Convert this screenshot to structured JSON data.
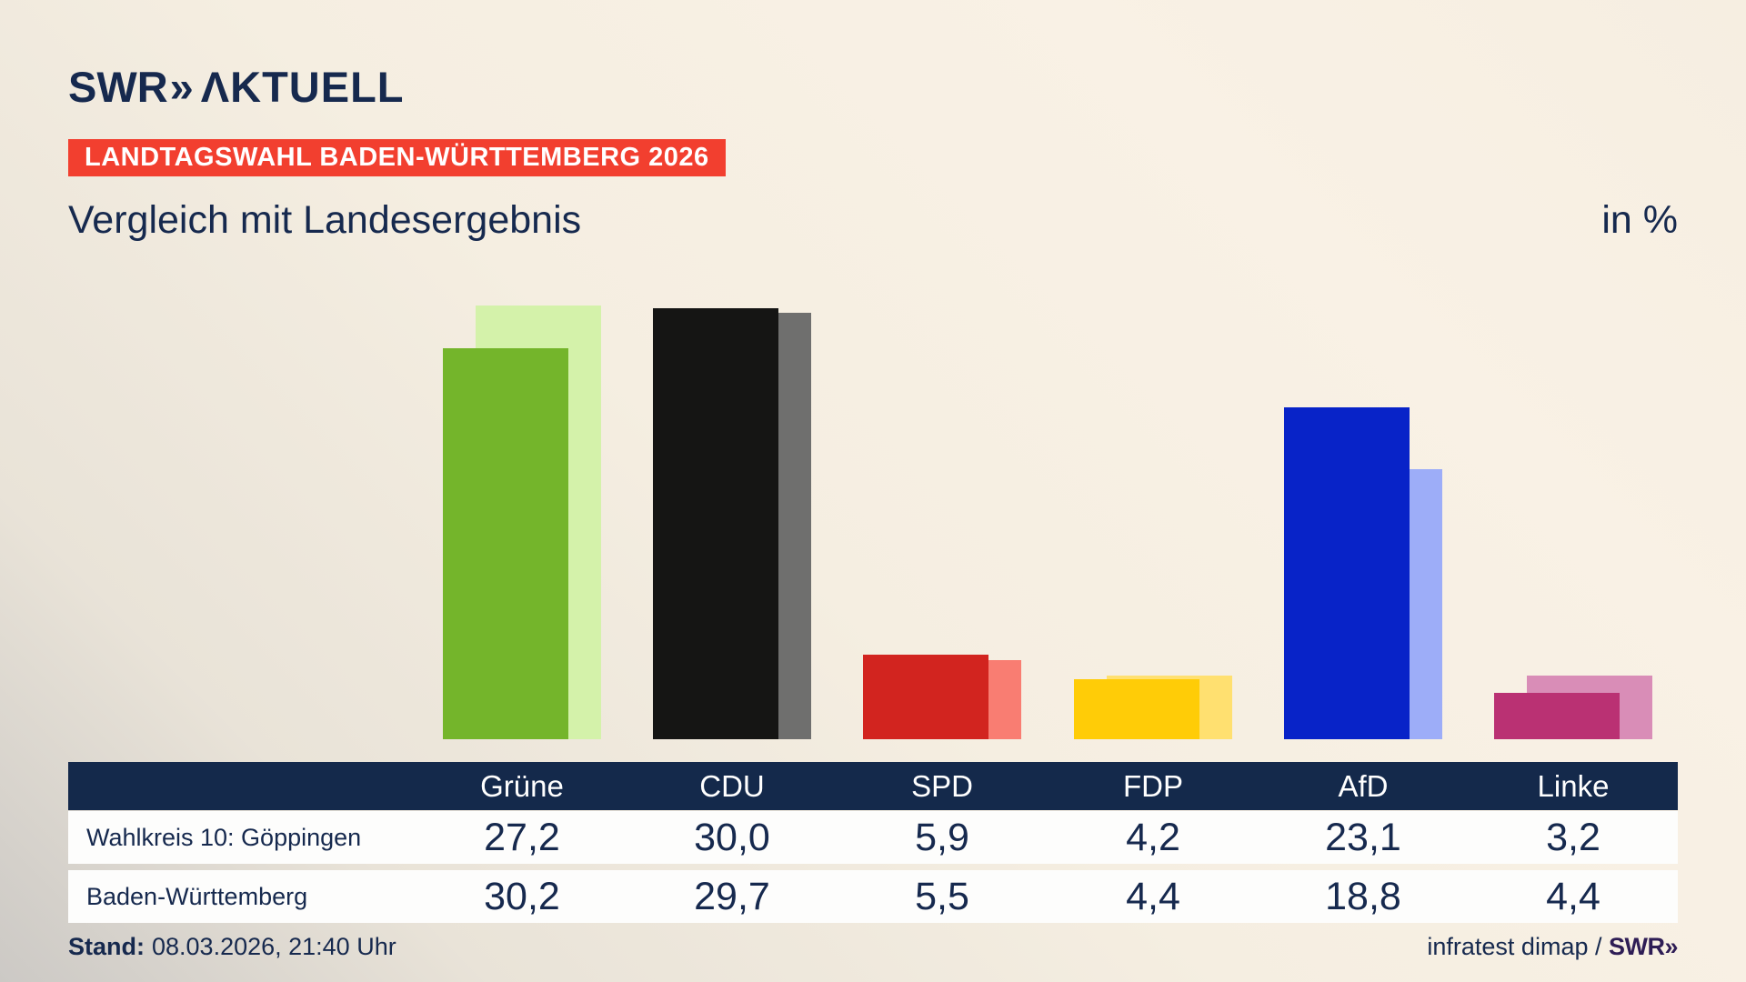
{
  "brand": {
    "swr": "SWR",
    "chevrons": "»",
    "aktuell": "ΛKTUELL"
  },
  "badge": {
    "text": "LANDTAGSWAHL BADEN-WÜRTTEMBERG 2026",
    "bg": "#f23f2f"
  },
  "title": "Vergleich mit Landesergebnis",
  "unit_label": "in %",
  "chart_data": {
    "type": "bar",
    "categories": [
      "Grüne",
      "CDU",
      "SPD",
      "FDP",
      "AfD",
      "Linke"
    ],
    "series": [
      {
        "name": "Wahlkreis 10: Göppingen",
        "values": [
          27.2,
          30.0,
          5.9,
          4.2,
          23.1,
          3.2
        ]
      },
      {
        "name": "Baden-Württemberg",
        "values": [
          30.2,
          29.7,
          5.5,
          4.4,
          18.8,
          4.4
        ]
      }
    ],
    "unit": "%",
    "ylim": [
      0,
      31
    ],
    "grid": false,
    "legend_position": "none (series identified in table below)",
    "parties": [
      {
        "slug": "gruene",
        "label": "Grüne",
        "color": "#74b52b",
        "color_light": "#d4f2aa"
      },
      {
        "slug": "cdu",
        "label": "CDU",
        "color": "#151514",
        "color_light": "#6f6f6e"
      },
      {
        "slug": "spd",
        "label": "SPD",
        "color": "#d2241f",
        "color_light": "#f97d72"
      },
      {
        "slug": "fdp",
        "label": "FDP",
        "color": "#ffcc07",
        "color_light": "#ffe070"
      },
      {
        "slug": "afd",
        "label": "AfD",
        "color": "#0823c8",
        "color_light": "#9dadf8"
      },
      {
        "slug": "linke",
        "label": "Linke",
        "color": "#ba3173",
        "color_light": "#d98db7"
      }
    ]
  },
  "table": {
    "header": [
      "Grüne",
      "CDU",
      "SPD",
      "FDP",
      "AfD",
      "Linke"
    ],
    "rows": [
      {
        "label": "Wahlkreis 10: Göppingen",
        "values": [
          "27,2",
          "30,0",
          "5,9",
          "4,2",
          "23,1",
          "3,2"
        ]
      },
      {
        "label": "Baden-Württemberg",
        "values": [
          "30,2",
          "29,7",
          "5,5",
          "4,4",
          "18,8",
          "4,4"
        ]
      }
    ]
  },
  "footer": {
    "stand_label": "Stand:",
    "stand_value": "08.03.2026, 21:40 Uhr",
    "source_text": "infratest dimap / ",
    "source_brand": "SWR»"
  }
}
